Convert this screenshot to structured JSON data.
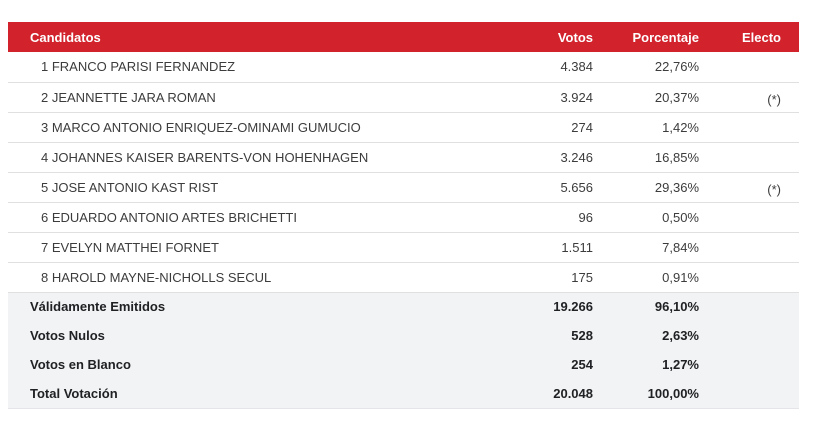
{
  "table": {
    "headers": {
      "candidatos": "Candidatos",
      "votos": "Votos",
      "porcentaje": "Porcentaje",
      "electo": "Electo"
    },
    "candidates": [
      {
        "name": "1 FRANCO PARISI FERNANDEZ",
        "votos": "4.384",
        "porcentaje": "22,76%",
        "electo": ""
      },
      {
        "name": "2 JEANNETTE JARA ROMAN",
        "votos": "3.924",
        "porcentaje": "20,37%",
        "electo": "(*)"
      },
      {
        "name": "3 MARCO ANTONIO ENRIQUEZ-OMINAMI GUMUCIO",
        "votos": "274",
        "porcentaje": "1,42%",
        "electo": ""
      },
      {
        "name": "4 JOHANNES KAISER BARENTS-VON HOHENHAGEN",
        "votos": "3.246",
        "porcentaje": "16,85%",
        "electo": ""
      },
      {
        "name": "5 JOSE ANTONIO KAST RIST",
        "votos": "5.656",
        "porcentaje": "29,36%",
        "electo": "(*)"
      },
      {
        "name": "6 EDUARDO ANTONIO ARTES BRICHETTI",
        "votos": "96",
        "porcentaje": "0,50%",
        "electo": ""
      },
      {
        "name": "7 EVELYN MATTHEI FORNET",
        "votos": "1.511",
        "porcentaje": "7,84%",
        "electo": ""
      },
      {
        "name": "8 HAROLD MAYNE-NICHOLLS SECUL",
        "votos": "175",
        "porcentaje": "0,91%",
        "electo": ""
      }
    ],
    "summary": [
      {
        "label": "Válidamente Emitidos",
        "votos": "19.266",
        "porcentaje": "96,10%"
      },
      {
        "label": "Votos Nulos",
        "votos": "528",
        "porcentaje": "2,63%"
      },
      {
        "label": "Votos en Blanco",
        "votos": "254",
        "porcentaje": "1,27%"
      },
      {
        "label": "Total Votación",
        "votos": "20.048",
        "porcentaje": "100,00%"
      }
    ],
    "colors": {
      "header_bg": "#d2232d",
      "header_text": "#ffffff",
      "row_border": "#e0e0e0",
      "summary_bg": "#f1f3f4",
      "body_text": "#3c3c3c",
      "summary_text": "#202124"
    }
  }
}
